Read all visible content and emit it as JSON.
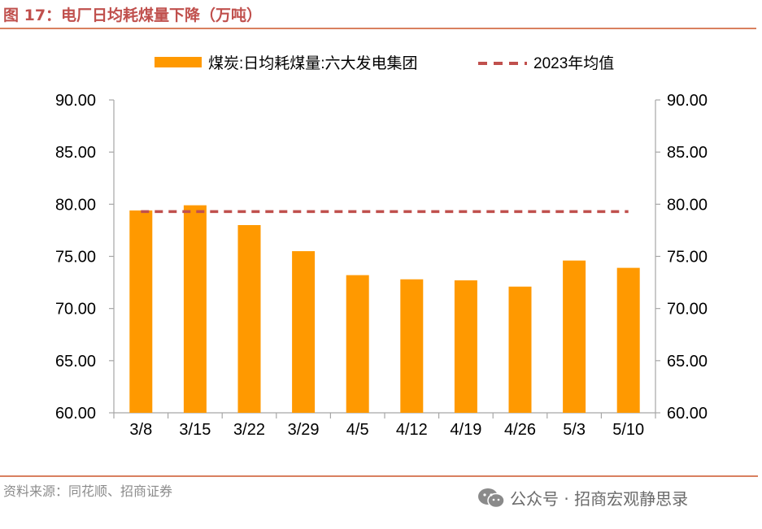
{
  "figure": {
    "title": "图 17：电厂日均耗煤量下降（万吨）",
    "source": "资料来源：同花顺、招商证券",
    "watermark": "公众号 · 招商宏观静思录"
  },
  "colors": {
    "bar": "#ff9900",
    "avg_line": "#c0504d",
    "title": "#c0504d",
    "rule": "#d9805f",
    "axis": "#a6a6a6"
  },
  "chart_data": {
    "type": "bar",
    "title": "",
    "xlabel": "",
    "ylabel": "",
    "categories": [
      "3/8",
      "3/15",
      "3/22",
      "3/29",
      "4/5",
      "4/12",
      "4/19",
      "4/26",
      "5/3",
      "5/10"
    ],
    "series": [
      {
        "name": "煤炭:日均耗煤量:六大发电集团",
        "type": "bar",
        "values": [
          79.4,
          79.9,
          78.0,
          75.5,
          73.2,
          72.8,
          72.7,
          72.1,
          74.6,
          73.9
        ]
      },
      {
        "name": "2023年均值",
        "type": "line",
        "style": "dashed",
        "values": [
          79.3,
          79.3,
          79.3,
          79.3,
          79.3,
          79.3,
          79.3,
          79.3,
          79.3,
          79.3
        ]
      }
    ],
    "ylim": [
      60,
      90
    ],
    "yticks": [
      "60.00",
      "65.00",
      "70.00",
      "75.00",
      "80.00",
      "85.00",
      "90.00"
    ],
    "y2ticks": [
      "60.00",
      "65.00",
      "70.00",
      "75.00",
      "80.00",
      "85.00",
      "90.00"
    ],
    "grid": false,
    "legend_position": "top"
  }
}
